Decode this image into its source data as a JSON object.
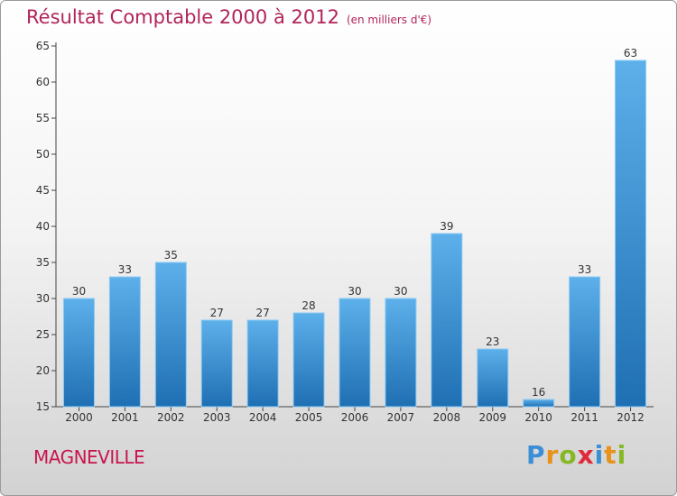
{
  "title": "Résultat Comptable 2000 à 2012",
  "subtitle": "(en milliers d'€)",
  "town": "MAGNEVILLE",
  "brand": {
    "letters": [
      "P",
      "r",
      "o",
      "x",
      "i",
      "t",
      "i"
    ],
    "colors": [
      "#3a8fd6",
      "#e8921a",
      "#86b826",
      "#e02a3a",
      "#3a8fd6",
      "#e8921a",
      "#86b826"
    ]
  },
  "colors": {
    "title": "#b1245a",
    "town": "#c8154e",
    "bar_light": "#5db0ea",
    "bar_dark": "#1f6fb3"
  },
  "chart_data": {
    "type": "bar",
    "title": "Résultat Comptable 2000 à 2012",
    "subtitle": "(en milliers d'€)",
    "xlabel": "",
    "ylabel": "",
    "categories": [
      "2000",
      "2001",
      "2002",
      "2003",
      "2004",
      "2005",
      "2006",
      "2007",
      "2008",
      "2009",
      "2010",
      "2011",
      "2012"
    ],
    "values": [
      30,
      33,
      35,
      27,
      27,
      28,
      30,
      30,
      39,
      23,
      16,
      33,
      63
    ],
    "ylim": [
      15,
      65
    ],
    "yticks": [
      15,
      20,
      25,
      30,
      35,
      40,
      45,
      50,
      55,
      60,
      65
    ],
    "grid": false
  }
}
